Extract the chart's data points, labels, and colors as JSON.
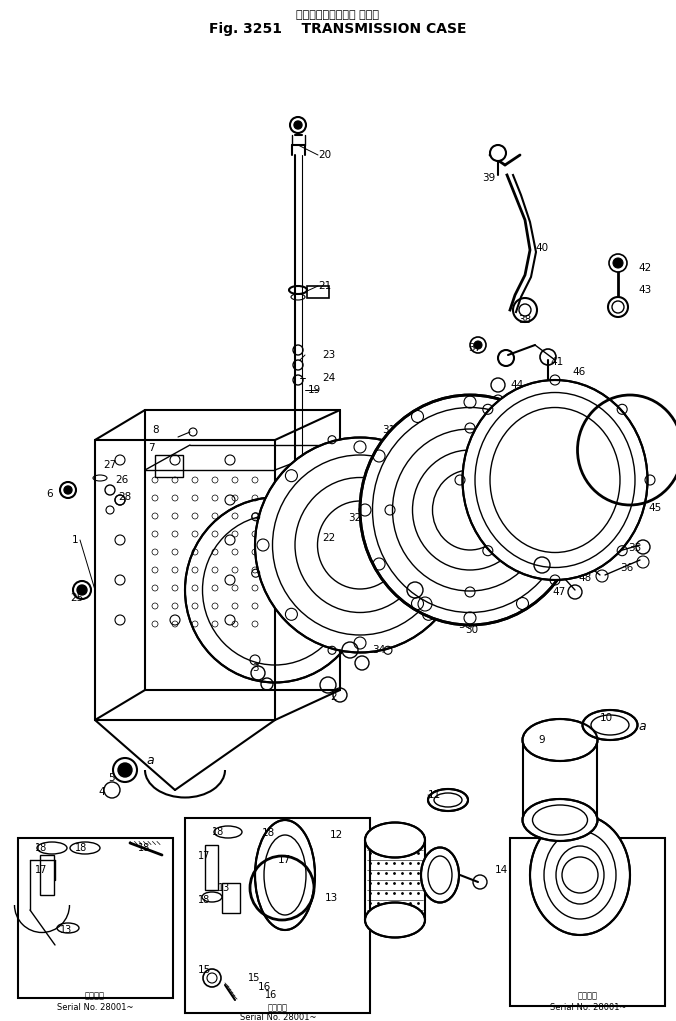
{
  "title_jp": "トランスミッション ケース",
  "title_en": "Fig. 3251    TRANSMISSION CASE",
  "bg_color": "#ffffff",
  "lc": "#000000",
  "serial_text": "Serial No. 28001~",
  "applicable_jp": "適用号機",
  "fig_width": 6.76,
  "fig_height": 10.21
}
